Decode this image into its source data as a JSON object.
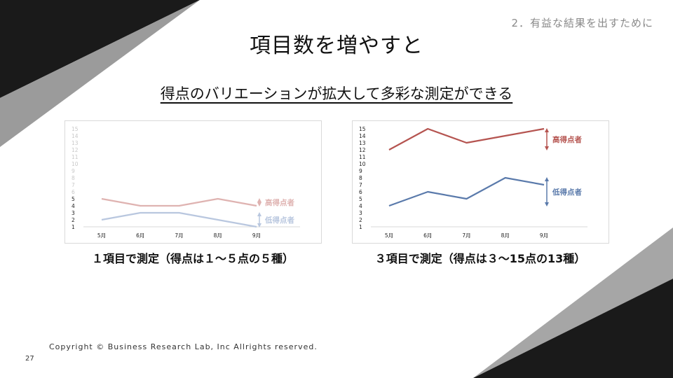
{
  "header": {
    "section_label": "2．有益な結果を出すために",
    "title": "項目数を増やすと",
    "subtitle": "得点のバリエーションが拡大して多彩な測定ができる"
  },
  "captions": {
    "left": "１項目で測定（得点は１～５点の５種）",
    "right": "３項目で測定（得点は３～15点の13種）"
  },
  "footer": {
    "copyright": "Copyright © Business Research Lab, Inc Allrights reserved.",
    "page_number": "27"
  },
  "colors": {
    "high": "#b55450",
    "low": "#5a7aab",
    "high_faded": "#dfb3b1",
    "low_faded": "#b9c7df",
    "axis_text": "#222222",
    "axis_text_faded": "#c8c8c8"
  },
  "chart_data": [
    {
      "type": "line",
      "categories": [
        "5月",
        "6月",
        "7月",
        "8月",
        "9月"
      ],
      "ylim": [
        1,
        15
      ],
      "yticks": [
        1,
        2,
        3,
        4,
        5,
        6,
        7,
        8,
        9,
        10,
        11,
        12,
        13,
        14,
        15
      ],
      "active_ticks": [
        1,
        2,
        3,
        4,
        5
      ],
      "grid": false,
      "faded": true,
      "series": [
        {
          "name": "高得点者",
          "key": "high",
          "values": [
            5,
            4,
            4,
            5,
            4
          ]
        },
        {
          "name": "低得点者",
          "key": "low",
          "values": [
            2,
            3,
            3,
            2,
            1
          ]
        }
      ]
    },
    {
      "type": "line",
      "categories": [
        "5月",
        "6月",
        "7月",
        "8月",
        "9月"
      ],
      "ylim": [
        1,
        15
      ],
      "yticks": [
        1,
        2,
        3,
        4,
        5,
        6,
        7,
        8,
        9,
        10,
        11,
        12,
        13,
        14,
        15
      ],
      "active_ticks": [
        1,
        2,
        3,
        4,
        5,
        6,
        7,
        8,
        9,
        10,
        11,
        12,
        13,
        14,
        15
      ],
      "grid": false,
      "faded": false,
      "series": [
        {
          "name": "高得点者",
          "key": "high",
          "values": [
            12,
            15,
            13,
            14,
            15
          ]
        },
        {
          "name": "低得点者",
          "key": "low",
          "values": [
            4,
            6,
            5,
            8,
            7
          ]
        }
      ]
    }
  ]
}
